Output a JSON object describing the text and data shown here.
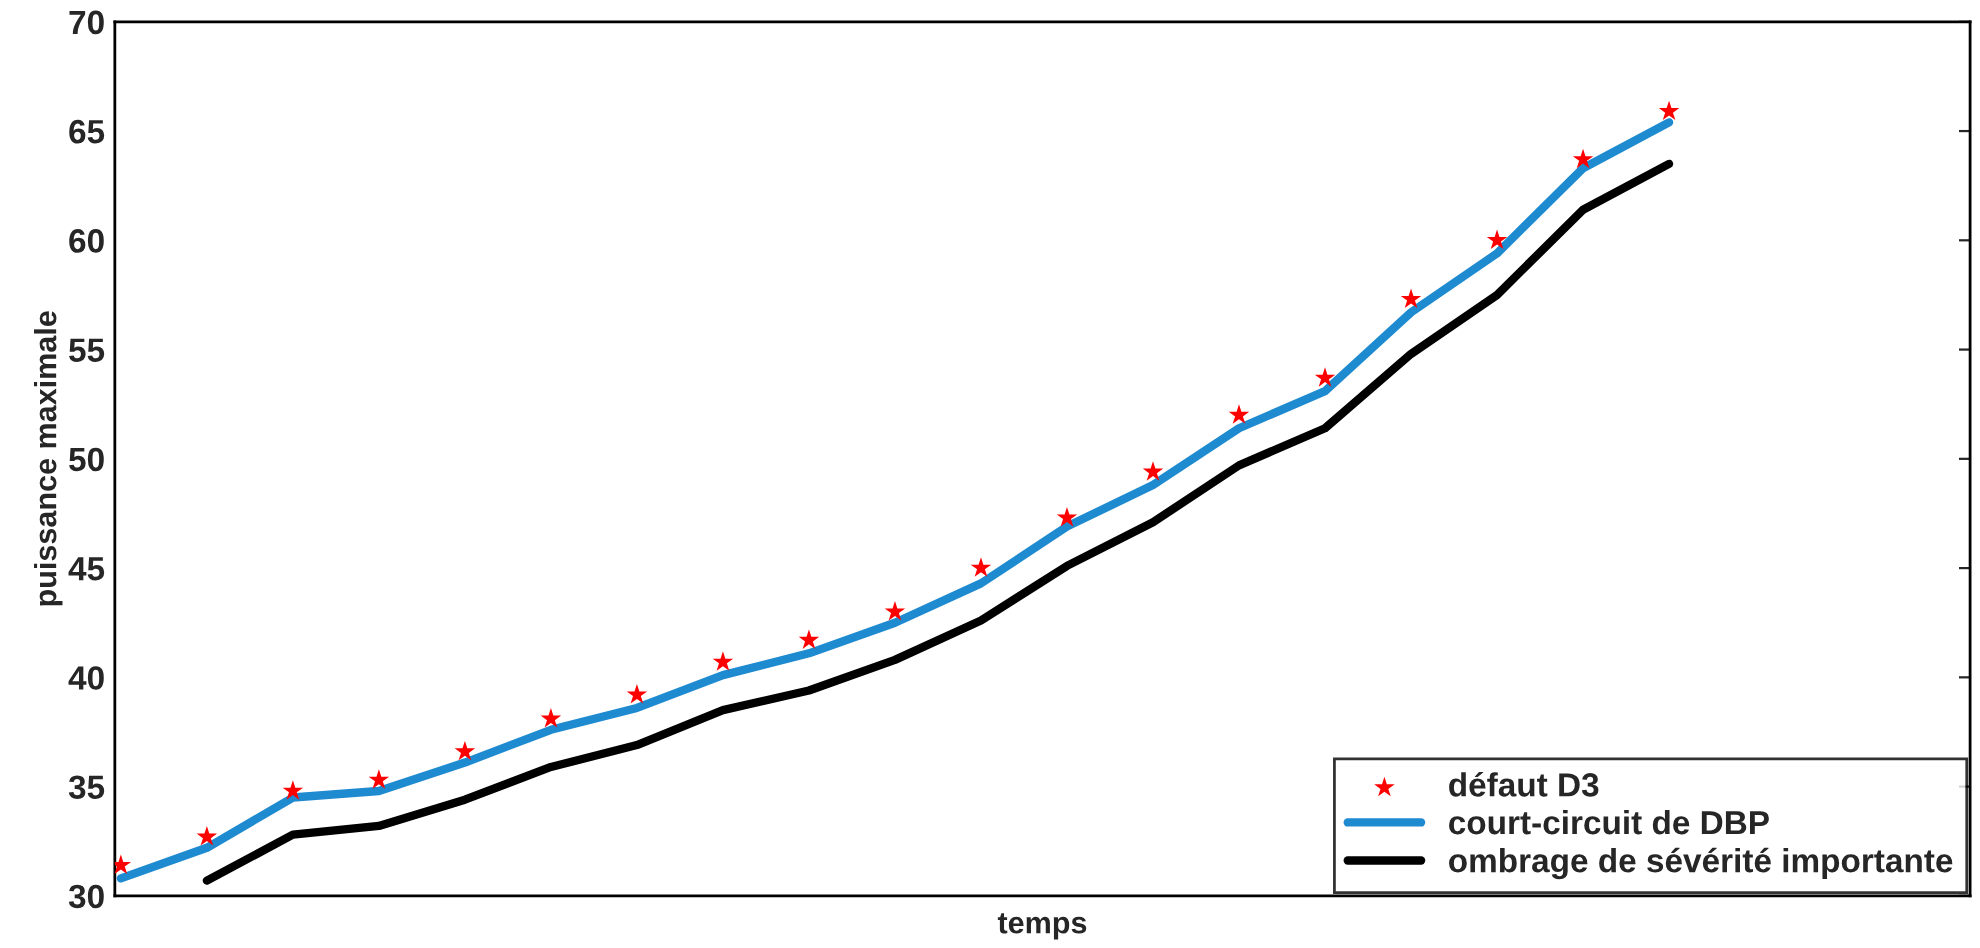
{
  "chart_data": {
    "type": "line",
    "xlabel": "temps",
    "ylabel": "puissance maximale",
    "categories": [
      null,
      null,
      null,
      null,
      null,
      null,
      null,
      null,
      null,
      null,
      null,
      null,
      null,
      null,
      null,
      null,
      null,
      null,
      null,
      null,
      null,
      null
    ],
    "series": [
      {
        "name": "défaut D3",
        "type": "scatter",
        "marker": "star",
        "color": "#ff0000",
        "values": [
          31.4,
          32.7,
          34.8,
          35.3,
          36.6,
          38.1,
          39.2,
          40.7,
          41.7,
          43.0,
          45.0,
          47.3,
          49.4,
          52.0,
          53.7,
          57.3,
          60.0,
          63.7,
          65.9,
          null,
          null,
          null
        ]
      },
      {
        "name": "court-circuit de DBP",
        "color": "#1e8ad0",
        "values": [
          30.8,
          32.2,
          34.5,
          34.8,
          36.1,
          37.6,
          38.6,
          40.1,
          41.1,
          42.5,
          44.3,
          46.9,
          48.8,
          51.4,
          53.1,
          56.7,
          59.4,
          63.3,
          65.4,
          null,
          null,
          null
        ]
      },
      {
        "name": "ombrage de sévérité importante",
        "color": "#000000",
        "values": [
          null,
          30.7,
          32.8,
          33.2,
          34.4,
          35.9,
          36.9,
          38.5,
          39.4,
          40.8,
          42.6,
          45.1,
          47.1,
          49.7,
          51.4,
          54.8,
          57.5,
          61.4,
          63.5,
          null,
          null,
          null
        ]
      }
    ],
    "ylim": [
      30,
      70
    ],
    "yticks": [
      30,
      35,
      40,
      45,
      50,
      55,
      60,
      65,
      70
    ],
    "grid": false,
    "legend": "bottom right",
    "tick_labels": "y"
  }
}
